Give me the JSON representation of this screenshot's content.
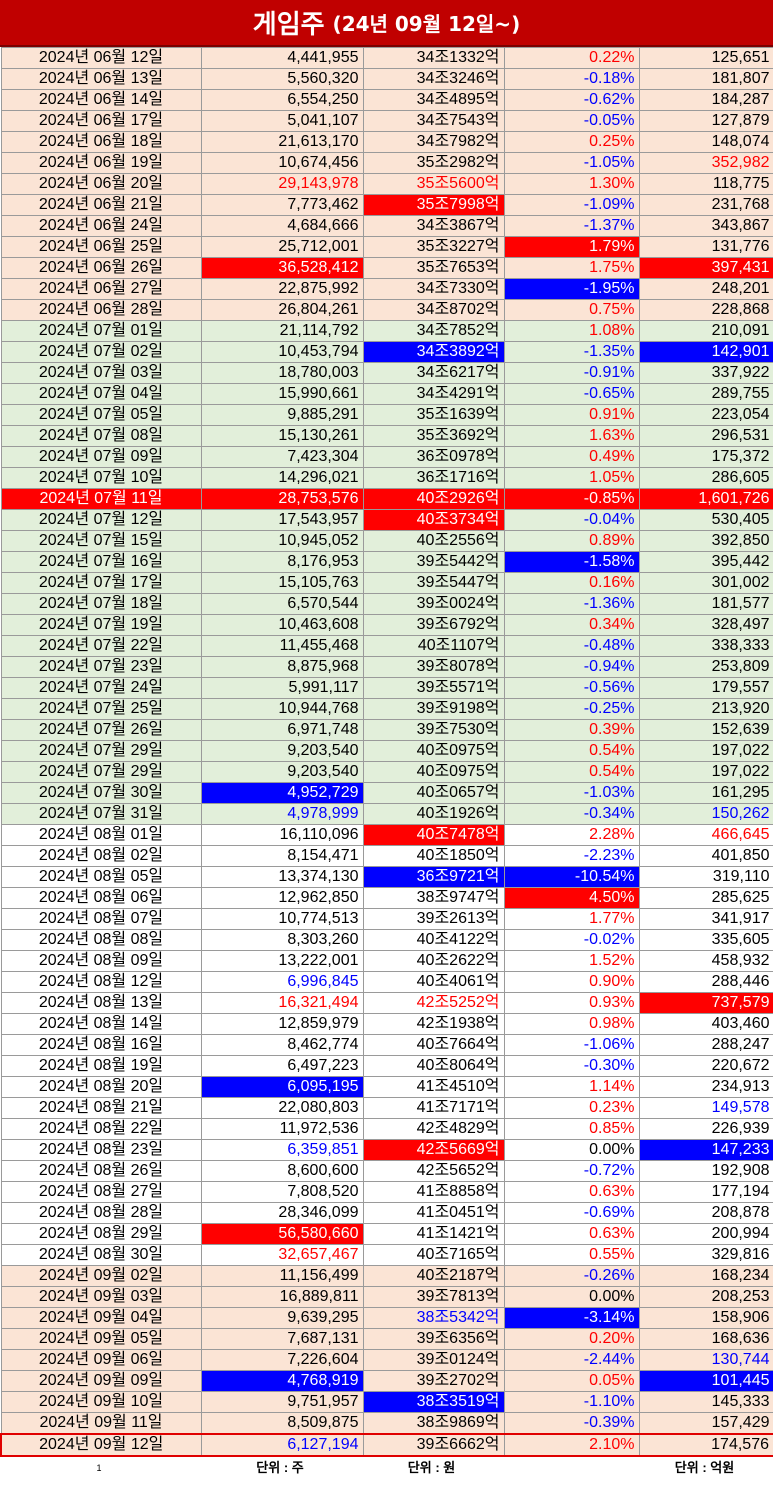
{
  "title": {
    "main": "게임주",
    "sub": "(24년 09월 12일~)"
  },
  "footer": {
    "c1": "1",
    "c2": "단위 : 주",
    "c3": "단위 : 원",
    "c5": "단위 : 억원"
  },
  "rows": [
    {
      "d": "2024년 06월 12일",
      "v": "4,441,955",
      "m": "34조1332억",
      "p": "0.22%",
      "a": "125,651",
      "bg": "p",
      "st": [
        "",
        "",
        "",
        "r",
        ""
      ]
    },
    {
      "d": "2024년 06월 13일",
      "v": "5,560,320",
      "m": "34조3246억",
      "p": "-0.18%",
      "a": "181,807",
      "bg": "p",
      "st": [
        "",
        "",
        "",
        "b",
        ""
      ]
    },
    {
      "d": "2024년 06월 14일",
      "v": "6,554,250",
      "m": "34조4895억",
      "p": "-0.62%",
      "a": "184,287",
      "bg": "p",
      "st": [
        "",
        "",
        "",
        "b",
        ""
      ]
    },
    {
      "d": "2024년 06월 17일",
      "v": "5,041,107",
      "m": "34조7543억",
      "p": "-0.05%",
      "a": "127,879",
      "bg": "p",
      "st": [
        "",
        "",
        "",
        "b",
        ""
      ]
    },
    {
      "d": "2024년 06월 18일",
      "v": "21,613,170",
      "m": "34조7982억",
      "p": "0.25%",
      "a": "148,074",
      "bg": "p",
      "st": [
        "",
        "",
        "",
        "r",
        ""
      ]
    },
    {
      "d": "2024년 06월 19일",
      "v": "10,674,456",
      "m": "35조2982억",
      "p": "-1.05%",
      "a": "352,982",
      "bg": "p",
      "st": [
        "",
        "",
        "",
        "b",
        "r"
      ]
    },
    {
      "d": "2024년 06월 20일",
      "v": "29,143,978",
      "m": "35조5600억",
      "p": "1.30%",
      "a": "118,775",
      "bg": "p",
      "st": [
        "",
        "r",
        "r",
        "r",
        ""
      ]
    },
    {
      "d": "2024년 06월 21일",
      "v": "7,773,462",
      "m": "35조7998억",
      "p": "-1.09%",
      "a": "231,768",
      "bg": "p",
      "st": [
        "",
        "",
        "R",
        "b",
        ""
      ]
    },
    {
      "d": "2024년 06월 24일",
      "v": "4,684,666",
      "m": "34조3867억",
      "p": "-1.37%",
      "a": "343,867",
      "bg": "p",
      "st": [
        "",
        "",
        "",
        "b",
        ""
      ]
    },
    {
      "d": "2024년 06월 25일",
      "v": "25,712,001",
      "m": "35조3227억",
      "p": "1.79%",
      "a": "131,776",
      "bg": "p",
      "st": [
        "",
        "",
        "",
        "R",
        ""
      ]
    },
    {
      "d": "2024년 06월 26일",
      "v": "36,528,412",
      "m": "35조7653억",
      "p": "1.75%",
      "a": "397,431",
      "bg": "p",
      "st": [
        "",
        "R",
        "",
        "r",
        "R"
      ]
    },
    {
      "d": "2024년 06월 27일",
      "v": "22,875,992",
      "m": "34조7330억",
      "p": "-1.95%",
      "a": "248,201",
      "bg": "p",
      "st": [
        "",
        "",
        "",
        "B",
        ""
      ]
    },
    {
      "d": "2024년 06월 28일",
      "v": "26,804,261",
      "m": "34조8702억",
      "p": "0.75%",
      "a": "228,868",
      "bg": "p",
      "st": [
        "",
        "",
        "",
        "r",
        ""
      ]
    },
    {
      "d": "2024년 07월 01일",
      "v": "21,114,792",
      "m": "34조7852억",
      "p": "1.08%",
      "a": "210,091",
      "bg": "g",
      "st": [
        "",
        "",
        "",
        "r",
        ""
      ]
    },
    {
      "d": "2024년 07월 02일",
      "v": "10,453,794",
      "m": "34조3892억",
      "p": "-1.35%",
      "a": "142,901",
      "bg": "g",
      "st": [
        "",
        "",
        "B",
        "b",
        "B"
      ]
    },
    {
      "d": "2024년 07월 03일",
      "v": "18,780,003",
      "m": "34조6217억",
      "p": "-0.91%",
      "a": "337,922",
      "bg": "g",
      "st": [
        "",
        "",
        "",
        "b",
        ""
      ]
    },
    {
      "d": "2024년 07월 04일",
      "v": "15,990,661",
      "m": "34조4291억",
      "p": "-0.65%",
      "a": "289,755",
      "bg": "g",
      "st": [
        "",
        "",
        "",
        "b",
        ""
      ]
    },
    {
      "d": "2024년 07월 05일",
      "v": "9,885,291",
      "m": "35조1639억",
      "p": "0.91%",
      "a": "223,054",
      "bg": "g",
      "st": [
        "",
        "",
        "",
        "r",
        ""
      ]
    },
    {
      "d": "2024년 07월 08일",
      "v": "15,130,261",
      "m": "35조3692억",
      "p": "1.63%",
      "a": "296,531",
      "bg": "g",
      "st": [
        "",
        "",
        "",
        "r",
        ""
      ]
    },
    {
      "d": "2024년 07월 09일",
      "v": "7,423,304",
      "m": "36조0978억",
      "p": "0.49%",
      "a": "175,372",
      "bg": "g",
      "st": [
        "",
        "",
        "",
        "r",
        ""
      ]
    },
    {
      "d": "2024년 07월 10일",
      "v": "14,296,021",
      "m": "36조1716억",
      "p": "1.05%",
      "a": "286,605",
      "bg": "g",
      "st": [
        "",
        "",
        "",
        "r",
        ""
      ]
    },
    {
      "d": "2024년 07월 11일",
      "v": "28,753,576",
      "m": "40조2926억",
      "p": "-0.85%",
      "a": "1,601,726",
      "bg": "hl",
      "st": [
        "",
        "",
        "",
        "",
        ""
      ]
    },
    {
      "d": "2024년 07월 12일",
      "v": "17,543,957",
      "m": "40조3734억",
      "p": "-0.04%",
      "a": "530,405",
      "bg": "g",
      "st": [
        "",
        "",
        "R",
        "b",
        ""
      ]
    },
    {
      "d": "2024년 07월 15일",
      "v": "10,945,052",
      "m": "40조2556억",
      "p": "0.89%",
      "a": "392,850",
      "bg": "g",
      "st": [
        "",
        "",
        "",
        "r",
        ""
      ]
    },
    {
      "d": "2024년 07월 16일",
      "v": "8,176,953",
      "m": "39조5442억",
      "p": "-1.58%",
      "a": "395,442",
      "bg": "g",
      "st": [
        "",
        "",
        "",
        "B",
        ""
      ]
    },
    {
      "d": "2024년 07월 17일",
      "v": "15,105,763",
      "m": "39조5447억",
      "p": "0.16%",
      "a": "301,002",
      "bg": "g",
      "st": [
        "",
        "",
        "",
        "r",
        ""
      ]
    },
    {
      "d": "2024년 07월 18일",
      "v": "6,570,544",
      "m": "39조0024억",
      "p": "-1.36%",
      "a": "181,577",
      "bg": "g",
      "st": [
        "",
        "",
        "",
        "b",
        ""
      ]
    },
    {
      "d": "2024년 07월 19일",
      "v": "10,463,608",
      "m": "39조6792억",
      "p": "0.34%",
      "a": "328,497",
      "bg": "g",
      "st": [
        "",
        "",
        "",
        "r",
        ""
      ]
    },
    {
      "d": "2024년 07월 22일",
      "v": "11,455,468",
      "m": "40조1107억",
      "p": "-0.48%",
      "a": "338,333",
      "bg": "g",
      "st": [
        "",
        "",
        "",
        "b",
        ""
      ]
    },
    {
      "d": "2024년 07월 23일",
      "v": "8,875,968",
      "m": "39조8078억",
      "p": "-0.94%",
      "a": "253,809",
      "bg": "g",
      "st": [
        "",
        "",
        "",
        "b",
        ""
      ]
    },
    {
      "d": "2024년 07월 24일",
      "v": "5,991,117",
      "m": "39조5571억",
      "p": "-0.56%",
      "a": "179,557",
      "bg": "g",
      "st": [
        "",
        "",
        "",
        "b",
        ""
      ]
    },
    {
      "d": "2024년 07월 25일",
      "v": "10,944,768",
      "m": "39조9198억",
      "p": "-0.25%",
      "a": "213,920",
      "bg": "g",
      "st": [
        "",
        "",
        "",
        "b",
        ""
      ]
    },
    {
      "d": "2024년 07월 26일",
      "v": "6,971,748",
      "m": "39조7530억",
      "p": "0.39%",
      "a": "152,639",
      "bg": "g",
      "st": [
        "",
        "",
        "",
        "r",
        ""
      ]
    },
    {
      "d": "2024년 07월 29일",
      "v": "9,203,540",
      "m": "40조0975억",
      "p": "0.54%",
      "a": "197,022",
      "bg": "g",
      "st": [
        "",
        "",
        "",
        "r",
        ""
      ]
    },
    {
      "d": "2024년 07월 29일",
      "v": "9,203,540",
      "m": "40조0975억",
      "p": "0.54%",
      "a": "197,022",
      "bg": "g",
      "st": [
        "",
        "",
        "",
        "r",
        ""
      ]
    },
    {
      "d": "2024년 07월 30일",
      "v": "4,952,729",
      "m": "40조0657억",
      "p": "-1.03%",
      "a": "161,295",
      "bg": "g",
      "st": [
        "",
        "B",
        "",
        "b",
        ""
      ]
    },
    {
      "d": "2024년 07월 31일",
      "v": "4,978,999",
      "m": "40조1926억",
      "p": "-0.34%",
      "a": "150,262",
      "bg": "g",
      "st": [
        "",
        "b",
        "",
        "b",
        "b"
      ]
    },
    {
      "d": "2024년 08월 01일",
      "v": "16,110,096",
      "m": "40조7478억",
      "p": "2.28%",
      "a": "466,645",
      "bg": "w",
      "st": [
        "",
        "",
        "R",
        "r",
        "r"
      ]
    },
    {
      "d": "2024년 08월 02일",
      "v": "8,154,471",
      "m": "40조1850억",
      "p": "-2.23%",
      "a": "401,850",
      "bg": "w",
      "st": [
        "",
        "",
        "",
        "b",
        ""
      ]
    },
    {
      "d": "2024년 08월 05일",
      "v": "13,374,130",
      "m": "36조9721억",
      "p": "-10.54%",
      "a": "319,110",
      "bg": "w",
      "st": [
        "",
        "",
        "B",
        "B",
        ""
      ]
    },
    {
      "d": "2024년 08월 06일",
      "v": "12,962,850",
      "m": "38조9747억",
      "p": "4.50%",
      "a": "285,625",
      "bg": "w",
      "st": [
        "",
        "",
        "",
        "R",
        ""
      ]
    },
    {
      "d": "2024년 08월 07일",
      "v": "10,774,513",
      "m": "39조2613억",
      "p": "1.77%",
      "a": "341,917",
      "bg": "w",
      "st": [
        "",
        "",
        "",
        "r",
        ""
      ]
    },
    {
      "d": "2024년 08월 08일",
      "v": "8,303,260",
      "m": "40조4122억",
      "p": "-0.02%",
      "a": "335,605",
      "bg": "w",
      "st": [
        "",
        "",
        "",
        "b",
        ""
      ]
    },
    {
      "d": "2024년 08월 09일",
      "v": "13,222,001",
      "m": "40조2622억",
      "p": "1.52%",
      "a": "458,932",
      "bg": "w",
      "st": [
        "",
        "",
        "",
        "r",
        ""
      ]
    },
    {
      "d": "2024년 08월 12일",
      "v": "6,996,845",
      "m": "40조4061억",
      "p": "0.90%",
      "a": "288,446",
      "bg": "w",
      "st": [
        "",
        "b",
        "",
        "r",
        ""
      ]
    },
    {
      "d": "2024년 08월 13일",
      "v": "16,321,494",
      "m": "42조5252억",
      "p": "0.93%",
      "a": "737,579",
      "bg": "w",
      "st": [
        "",
        "r",
        "r",
        "r",
        "R"
      ]
    },
    {
      "d": "2024년 08월 14일",
      "v": "12,859,979",
      "m": "42조1938억",
      "p": "0.98%",
      "a": "403,460",
      "bg": "w",
      "st": [
        "",
        "",
        "",
        "r",
        ""
      ]
    },
    {
      "d": "2024년 08월 16일",
      "v": "8,462,774",
      "m": "40조7664억",
      "p": "-1.06%",
      "a": "288,247",
      "bg": "w",
      "st": [
        "",
        "",
        "",
        "b",
        ""
      ]
    },
    {
      "d": "2024년 08월 19일",
      "v": "6,497,223",
      "m": "40조8064억",
      "p": "-0.30%",
      "a": "220,672",
      "bg": "w",
      "st": [
        "",
        "",
        "",
        "b",
        ""
      ]
    },
    {
      "d": "2024년 08월 20일",
      "v": "6,095,195",
      "m": "41조4510억",
      "p": "1.14%",
      "a": "234,913",
      "bg": "w",
      "st": [
        "",
        "B",
        "",
        "r",
        ""
      ]
    },
    {
      "d": "2024년 08월 21일",
      "v": "22,080,803",
      "m": "41조7171억",
      "p": "0.23%",
      "a": "149,578",
      "bg": "w",
      "st": [
        "",
        "",
        "",
        "r",
        "b"
      ]
    },
    {
      "d": "2024년 08월 22일",
      "v": "11,972,536",
      "m": "42조4829억",
      "p": "0.85%",
      "a": "226,939",
      "bg": "w",
      "st": [
        "",
        "",
        "",
        "r",
        ""
      ]
    },
    {
      "d": "2024년 08월 23일",
      "v": "6,359,851",
      "m": "42조5669억",
      "p": "0.00%",
      "a": "147,233",
      "bg": "w",
      "st": [
        "",
        "b",
        "R",
        "",
        "B"
      ]
    },
    {
      "d": "2024년 08월 26일",
      "v": "8,600,600",
      "m": "42조5652억",
      "p": "-0.72%",
      "a": "192,908",
      "bg": "w",
      "st": [
        "",
        "",
        "",
        "b",
        ""
      ]
    },
    {
      "d": "2024년 08월 27일",
      "v": "7,808,520",
      "m": "41조8858억",
      "p": "0.63%",
      "a": "177,194",
      "bg": "w",
      "st": [
        "",
        "",
        "",
        "r",
        ""
      ]
    },
    {
      "d": "2024년 08월 28일",
      "v": "28,346,099",
      "m": "41조0451억",
      "p": "-0.69%",
      "a": "208,878",
      "bg": "w",
      "st": [
        "",
        "",
        "",
        "b",
        ""
      ]
    },
    {
      "d": "2024년 08월 29일",
      "v": "56,580,660",
      "m": "41조1421억",
      "p": "0.63%",
      "a": "200,994",
      "bg": "w",
      "st": [
        "",
        "R",
        "",
        "r",
        ""
      ]
    },
    {
      "d": "2024년 08월 30일",
      "v": "32,657,467",
      "m": "40조7165억",
      "p": "0.55%",
      "a": "329,816",
      "bg": "w",
      "st": [
        "",
        "r",
        "",
        "r",
        ""
      ]
    },
    {
      "d": "2024년 09월 02일",
      "v": "11,156,499",
      "m": "40조2187억",
      "p": "-0.26%",
      "a": "168,234",
      "bg": "p",
      "st": [
        "",
        "",
        "",
        "b",
        ""
      ]
    },
    {
      "d": "2024년 09월 03일",
      "v": "16,889,811",
      "m": "39조7813억",
      "p": "0.00%",
      "a": "208,253",
      "bg": "p",
      "st": [
        "",
        "",
        "",
        "",
        ""
      ]
    },
    {
      "d": "2024년 09월 04일",
      "v": "9,639,295",
      "m": "38조5342억",
      "p": "-3.14%",
      "a": "158,906",
      "bg": "p",
      "st": [
        "",
        "",
        "b",
        "B",
        ""
      ]
    },
    {
      "d": "2024년 09월 05일",
      "v": "7,687,131",
      "m": "39조6356억",
      "p": "0.20%",
      "a": "168,636",
      "bg": "p",
      "st": [
        "",
        "",
        "",
        "r",
        ""
      ]
    },
    {
      "d": "2024년 09월 06일",
      "v": "7,226,604",
      "m": "39조0124억",
      "p": "-2.44%",
      "a": "130,744",
      "bg": "p",
      "st": [
        "",
        "",
        "",
        "b",
        "b"
      ]
    },
    {
      "d": "2024년 09월 09일",
      "v": "4,768,919",
      "m": "39조2702억",
      "p": "0.05%",
      "a": "101,445",
      "bg": "p",
      "st": [
        "",
        "B",
        "",
        "r",
        "B"
      ]
    },
    {
      "d": "2024년 09월 10일",
      "v": "9,751,957",
      "m": "38조3519억",
      "p": "-1.10%",
      "a": "145,333",
      "bg": "p",
      "st": [
        "",
        "",
        "B",
        "b",
        ""
      ]
    },
    {
      "d": "2024년 09월 11일",
      "v": "8,509,875",
      "m": "38조9869억",
      "p": "-0.39%",
      "a": "157,429",
      "bg": "p",
      "st": [
        "",
        "",
        "",
        "b",
        ""
      ]
    },
    {
      "d": "2024년 09월 12일",
      "v": "6,127,194",
      "m": "39조6662억",
      "p": "2.10%",
      "a": "174,576",
      "bg": "p cur",
      "st": [
        "",
        "b",
        "",
        "r",
        ""
      ]
    }
  ]
}
